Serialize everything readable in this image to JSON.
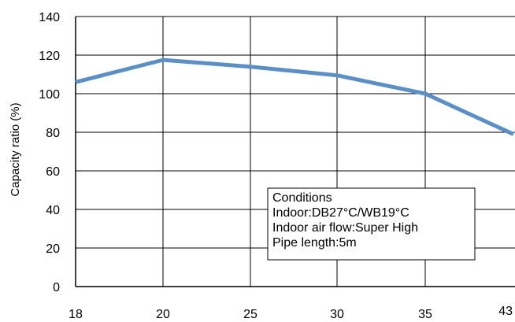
{
  "chart_data": {
    "type": "line",
    "title": "",
    "xlabel": "",
    "ylabel": "Capacity ratio (%)",
    "categories": [
      "18",
      "20",
      "25",
      "30",
      "35",
      "43"
    ],
    "x": [
      18,
      20,
      25,
      30,
      35,
      43
    ],
    "series": [
      {
        "values": [
          106,
          117.5,
          114,
          109.5,
          100,
          79
        ],
        "color": "#5b8fc7"
      }
    ],
    "ylim": [
      0,
      140
    ],
    "yticks": [
      "0",
      "20",
      "40",
      "60",
      "80",
      "100",
      "120",
      "140"
    ],
    "grid": true,
    "annotation": {
      "placement": "lower-right",
      "lines": [
        "Conditions",
        "Indoor:DB27°C/WB19°C",
        "Indoor air flow:Super High",
        "Pipe length:5m"
      ]
    }
  }
}
